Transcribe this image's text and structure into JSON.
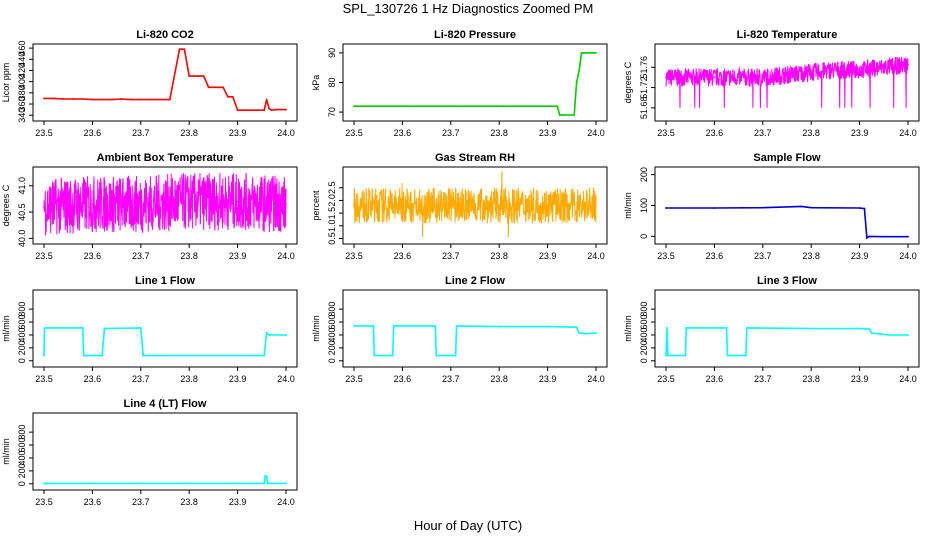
{
  "page": {
    "title": "SPL_130726  1 Hz Diagnostics Zoomed PM",
    "xlabel": "Hour of Day (UTC)"
  },
  "x_ticks": [
    "23.5",
    "23.6",
    "23.7",
    "23.8",
    "23.9",
    "24.0"
  ],
  "chart_data": [
    {
      "type": "line",
      "title": "Li-820 CO2",
      "ylabel": "Licor ppm",
      "color": "#ff0000",
      "xlim": [
        23.5,
        24.0
      ],
      "ylim": [
        335,
        462
      ],
      "yticks": [
        340,
        360,
        380,
        400,
        420,
        440,
        460
      ],
      "ytick_labels": [
        "340",
        "360",
        "380",
        "400",
        "420",
        "440",
        "460"
      ],
      "x": [
        23.5,
        23.52,
        23.54,
        23.56,
        23.58,
        23.6,
        23.62,
        23.64,
        23.66,
        23.68,
        23.7,
        23.72,
        23.74,
        23.75,
        23.76,
        23.78,
        23.79,
        23.8,
        23.81,
        23.82,
        23.83,
        23.84,
        23.85,
        23.86,
        23.87,
        23.88,
        23.89,
        23.9,
        23.92,
        23.94,
        23.955,
        23.96,
        23.965,
        23.97,
        23.98,
        23.99,
        24.0
      ],
      "y": [
        370,
        370,
        369,
        369,
        369,
        368,
        368,
        368,
        369,
        368,
        368,
        368,
        368,
        368,
        368,
        458,
        458,
        410,
        410,
        410,
        410,
        390,
        390,
        390,
        390,
        373,
        373,
        349,
        349,
        349,
        349,
        368,
        352,
        349,
        350,
        350,
        350
      ]
    },
    {
      "type": "line",
      "title": "Li-820 Pressure",
      "ylabel": "kPa",
      "color": "#00cc00",
      "xlim": [
        23.5,
        24.0
      ],
      "ylim": [
        68,
        92
      ],
      "yticks": [
        70,
        80,
        90
      ],
      "ytick_labels": [
        "70",
        "80",
        "90"
      ],
      "x": [
        23.5,
        23.6,
        23.7,
        23.8,
        23.9,
        23.92,
        23.925,
        23.93,
        23.935,
        23.955,
        23.96,
        23.965,
        23.97,
        23.975,
        24.0
      ],
      "y": [
        72,
        72,
        72,
        72,
        72,
        72,
        69,
        69,
        69,
        69,
        80,
        84,
        90,
        90,
        90
      ]
    },
    {
      "type": "line",
      "title": "Li-820 Temperature",
      "ylabel": "degrees C",
      "color": "#ff00ff",
      "xlim": [
        23.5,
        24.0
      ],
      "ylim": [
        51.66,
        51.8
      ],
      "yticks": [
        51.68,
        51.72,
        51.76
      ],
      "ytick_labels": [
        "51.68",
        "51.72",
        "51.76"
      ],
      "x": [
        23.5,
        23.55,
        23.6,
        23.65,
        23.7,
        23.75,
        23.8,
        23.85,
        23.9,
        23.95,
        24.0
      ],
      "y": [
        51.74,
        51.74,
        51.74,
        51.74,
        51.74,
        51.745,
        51.75,
        51.755,
        51.755,
        51.76,
        51.765
      ]
    },
    {
      "type": "line",
      "title": "Ambient Box Temperature",
      "ylabel": "degrees C",
      "color": "#ff00ff",
      "xlim": [
        23.5,
        24.0
      ],
      "ylim": [
        39.95,
        41.3
      ],
      "yticks": [
        40.0,
        40.5,
        41.0
      ],
      "ytick_labels": [
        "40.0",
        "40.5",
        "41.0"
      ],
      "x": [
        23.5,
        23.6,
        23.7,
        23.8,
        23.9,
        24.0
      ],
      "y": [
        40.6,
        40.65,
        40.65,
        40.7,
        40.7,
        40.65
      ]
    },
    {
      "type": "line",
      "title": "Gas Stream RH",
      "ylabel": "percent",
      "color": "#ffaa00",
      "xlim": [
        23.5,
        24.0
      ],
      "ylim": [
        0.4,
        3.2
      ],
      "yticks": [
        0.5,
        1.0,
        1.5,
        2.0,
        2.5
      ],
      "ytick_labels": [
        "0.5",
        "1.0",
        "1.5",
        "2.0",
        "2.5"
      ],
      "x": [
        23.5,
        23.6,
        23.7,
        23.8,
        23.9,
        24.0
      ],
      "y": [
        1.8,
        1.8,
        1.8,
        1.8,
        1.8,
        1.8
      ]
    },
    {
      "type": "line",
      "title": "Sample Flow",
      "ylabel": "ml/min",
      "color": "#0000cc",
      "xlim": [
        23.5,
        24.0
      ],
      "ylim": [
        -15,
        215
      ],
      "yticks": [
        0,
        100,
        200
      ],
      "ytick_labels": [
        "0",
        "100",
        "200"
      ],
      "x": [
        23.5,
        23.6,
        23.7,
        23.78,
        23.8,
        23.9,
        23.91,
        23.915,
        23.92,
        23.95,
        24.0
      ],
      "y": [
        92,
        92,
        93,
        97,
        93,
        92,
        90,
        -5,
        0,
        -1,
        -1
      ]
    },
    {
      "type": "line",
      "title": "Line 1 Flow",
      "ylabel": "ml/min",
      "color": "#00ffff",
      "xlim": [
        23.5,
        24.0
      ],
      "ylim": [
        -50,
        1050
      ],
      "yticks": [
        0,
        200,
        400,
        600,
        800
      ],
      "ytick_labels": [
        "0",
        "200",
        "400",
        "600",
        "800"
      ],
      "x": [
        23.5,
        23.501,
        23.503,
        23.58,
        23.582,
        23.62,
        23.625,
        23.628,
        23.7,
        23.705,
        23.71,
        23.8,
        23.9,
        23.955,
        23.96,
        23.965,
        23.98,
        24.0
      ],
      "y": [
        80,
        500,
        510,
        510,
        80,
        80,
        500,
        500,
        510,
        80,
        80,
        80,
        80,
        80,
        430,
        400,
        400,
        400
      ]
    },
    {
      "type": "line",
      "title": "Line 2 Flow",
      "ylabel": "ml/min",
      "color": "#00ffff",
      "xlim": [
        23.5,
        24.0
      ],
      "ylim": [
        -50,
        1050
      ],
      "yticks": [
        0,
        200,
        400,
        600,
        800
      ],
      "ytick_labels": [
        "0",
        "200",
        "400",
        "600",
        "800"
      ],
      "x": [
        23.5,
        23.54,
        23.542,
        23.58,
        23.582,
        23.668,
        23.67,
        23.71,
        23.712,
        23.8,
        23.9,
        23.96,
        23.965,
        23.98,
        24.0
      ],
      "y": [
        540,
        540,
        80,
        80,
        540,
        540,
        80,
        80,
        540,
        530,
        530,
        520,
        430,
        420,
        430
      ]
    },
    {
      "type": "line",
      "title": "Line 3 Flow",
      "ylabel": "ml/min",
      "color": "#00ffff",
      "xlim": [
        23.5,
        24.0
      ],
      "ylim": [
        -50,
        1050
      ],
      "yticks": [
        0,
        200,
        400,
        600,
        800
      ],
      "ytick_labels": [
        "0",
        "200",
        "400",
        "600",
        "800"
      ],
      "x": [
        23.5,
        23.502,
        23.504,
        23.54,
        23.542,
        23.625,
        23.627,
        23.665,
        23.667,
        23.8,
        23.9,
        23.92,
        23.925,
        23.96,
        24.0
      ],
      "y": [
        80,
        510,
        80,
        80,
        510,
        510,
        80,
        80,
        510,
        500,
        500,
        490,
        430,
        400,
        400
      ]
    },
    {
      "type": "line",
      "title": "Line 4 (LT) Flow",
      "ylabel": "ml/min",
      "color": "#00ffff",
      "xlim": [
        23.5,
        24.0
      ],
      "ylim": [
        -50,
        1050
      ],
      "yticks": [
        0,
        200,
        400,
        600,
        800
      ],
      "ytick_labels": [
        "0",
        "200",
        "400",
        "600",
        "800"
      ],
      "x": [
        23.5,
        23.6,
        23.7,
        23.8,
        23.9,
        23.955,
        23.957,
        23.96,
        23.962,
        24.0
      ],
      "y": [
        5,
        5,
        5,
        5,
        5,
        5,
        120,
        120,
        5,
        5
      ]
    }
  ]
}
